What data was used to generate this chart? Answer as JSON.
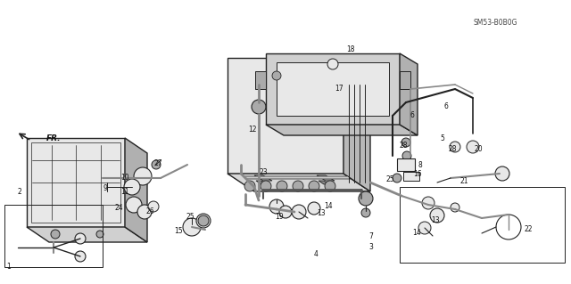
{
  "bg_color": "#ffffff",
  "line_color": "#222222",
  "text_color": "#111111",
  "watermark": "SM53-B0B0G",
  "fr_label": "FR.",
  "figsize": [
    6.4,
    3.19
  ],
  "dpi": 100,
  "gray_fill": "#c8c8c8",
  "light_gray": "#e8e8e8",
  "mid_gray": "#aaaaaa",
  "dark_gray": "#888888"
}
